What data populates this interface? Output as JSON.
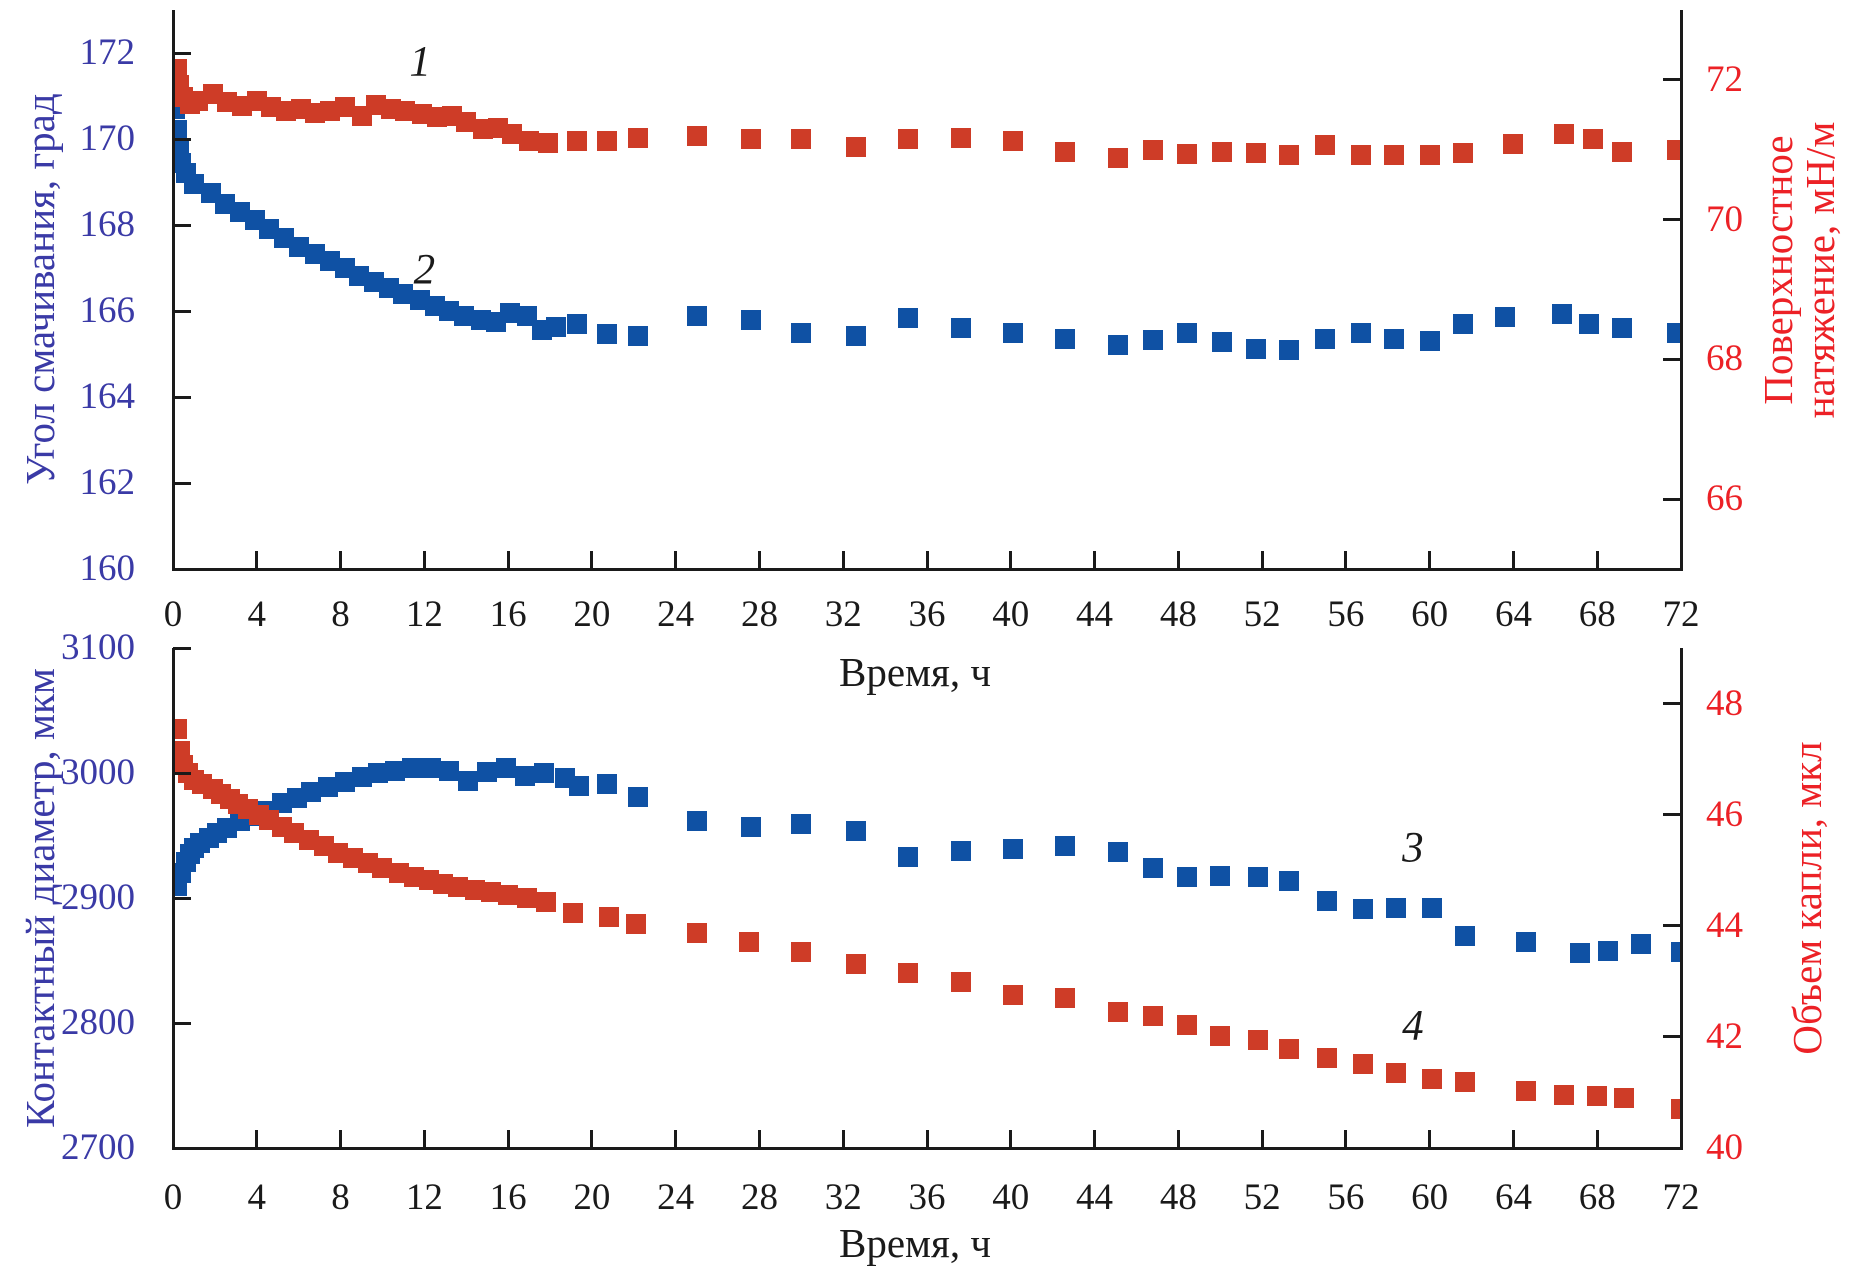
{
  "colors": {
    "marker_blue": "#0F51A4",
    "marker_red": "#CE3C27",
    "axis_line": "#1A1A1A",
    "left_axis_text": "#3A3AA6",
    "right_axis_text": "#EC2126",
    "x_axis_text": "#1A1A1A"
  },
  "chart_data": [
    {
      "type": "scatter",
      "marker": "square",
      "grid": false,
      "legend": "none",
      "x": {
        "label": "Время, ч",
        "range": [
          0,
          72
        ],
        "ticks": [
          0,
          4,
          8,
          12,
          16,
          20,
          24,
          28,
          32,
          36,
          40,
          44,
          48,
          52,
          56,
          60,
          64,
          68,
          72
        ]
      },
      "y_left": {
        "label": "Угол смачивания, град",
        "range": [
          160,
          173
        ],
        "ticks": [
          160,
          162,
          164,
          166,
          168,
          170,
          172
        ],
        "color": "#3A3AA6"
      },
      "y_right": {
        "label_lines": [
          "Поверхностное",
          "натяжение, мН/м"
        ],
        "range": [
          65,
          73
        ],
        "ticks": [
          66,
          68,
          70,
          72
        ],
        "color": "#EC2126"
      },
      "series": [
        {
          "name": "1",
          "axis": "right",
          "color": "#CE3C27",
          "z": 2,
          "label": {
            "text": "1",
            "x": 11.8,
            "y": 72.25
          },
          "points": [
            [
              0.2,
              72.15
            ],
            [
              0.3,
              71.92
            ],
            [
              0.5,
              71.76
            ],
            [
              0.8,
              71.65
            ],
            [
              1.2,
              71.7
            ],
            [
              1.9,
              71.8
            ],
            [
              2.6,
              71.68
            ],
            [
              3.3,
              71.63
            ],
            [
              4.0,
              71.7
            ],
            [
              4.7,
              71.61
            ],
            [
              5.4,
              71.56
            ],
            [
              6.1,
              71.58
            ],
            [
              6.8,
              71.53
            ],
            [
              7.5,
              71.56
            ],
            [
              8.2,
              71.61
            ],
            [
              9.0,
              71.49
            ],
            [
              9.7,
              71.64
            ],
            [
              10.4,
              71.58
            ],
            [
              11.1,
              71.55
            ],
            [
              11.9,
              71.51
            ],
            [
              12.6,
              71.47
            ],
            [
              13.3,
              71.49
            ],
            [
              14.0,
              71.39
            ],
            [
              14.8,
              71.29
            ],
            [
              15.5,
              71.31
            ],
            [
              16.2,
              71.23
            ],
            [
              17.0,
              71.13
            ],
            [
              17.9,
              71.1
            ],
            [
              19.3,
              71.12
            ],
            [
              20.7,
              71.12
            ],
            [
              22.2,
              71.17
            ],
            [
              25.0,
              71.2
            ],
            [
              27.6,
              71.15
            ],
            [
              30.0,
              71.15
            ],
            [
              32.6,
              71.04
            ],
            [
              35.1,
              71.15
            ],
            [
              37.6,
              71.17
            ],
            [
              40.1,
              71.12
            ],
            [
              42.6,
              70.97
            ],
            [
              45.1,
              70.88
            ],
            [
              46.8,
              71.0
            ],
            [
              48.4,
              70.94
            ],
            [
              50.1,
              70.97
            ],
            [
              51.7,
              70.95
            ],
            [
              53.3,
              70.92
            ],
            [
              55.0,
              71.07
            ],
            [
              56.7,
              70.92
            ],
            [
              58.3,
              70.93
            ],
            [
              60.0,
              70.93
            ],
            [
              61.6,
              70.95
            ],
            [
              64.0,
              71.08
            ],
            [
              66.4,
              71.22
            ],
            [
              67.8,
              71.15
            ],
            [
              69.2,
              70.97
            ],
            [
              71.8,
              71.0
            ]
          ]
        },
        {
          "name": "2",
          "axis": "left",
          "color": "#0F51A4",
          "z": 1,
          "label": {
            "text": "2",
            "x": 12.0,
            "y": 166.95
          },
          "points": [
            [
              0.1,
              170.7
            ],
            [
              0.2,
              170.2
            ],
            [
              0.3,
              169.75
            ],
            [
              0.4,
              169.45
            ],
            [
              0.6,
              169.2
            ],
            [
              1.0,
              168.95
            ],
            [
              1.8,
              168.74
            ],
            [
              2.5,
              168.5
            ],
            [
              3.2,
              168.3
            ],
            [
              3.9,
              168.12
            ],
            [
              4.6,
              167.9
            ],
            [
              5.3,
              167.7
            ],
            [
              6.0,
              167.5
            ],
            [
              6.8,
              167.32
            ],
            [
              7.5,
              167.16
            ],
            [
              8.2,
              167.0
            ],
            [
              8.9,
              166.82
            ],
            [
              9.6,
              166.68
            ],
            [
              10.3,
              166.53
            ],
            [
              11.0,
              166.4
            ],
            [
              11.8,
              166.26
            ],
            [
              12.5,
              166.12
            ],
            [
              13.2,
              166.01
            ],
            [
              13.9,
              165.89
            ],
            [
              14.7,
              165.8
            ],
            [
              15.4,
              165.74
            ],
            [
              16.1,
              165.95
            ],
            [
              16.9,
              165.88
            ],
            [
              17.6,
              165.56
            ],
            [
              18.3,
              165.62
            ],
            [
              19.3,
              165.7
            ],
            [
              20.7,
              165.46
            ],
            [
              22.2,
              165.42
            ],
            [
              25.0,
              165.88
            ],
            [
              27.6,
              165.8
            ],
            [
              30.0,
              165.48
            ],
            [
              32.6,
              165.42
            ],
            [
              35.1,
              165.84
            ],
            [
              37.6,
              165.6
            ],
            [
              40.1,
              165.5
            ],
            [
              42.6,
              165.36
            ],
            [
              45.1,
              165.2
            ],
            [
              46.8,
              165.32
            ],
            [
              48.4,
              165.5
            ],
            [
              50.1,
              165.28
            ],
            [
              51.7,
              165.12
            ],
            [
              53.3,
              165.1
            ],
            [
              55.0,
              165.36
            ],
            [
              56.7,
              165.5
            ],
            [
              58.3,
              165.36
            ],
            [
              60.0,
              165.3
            ],
            [
              61.6,
              165.7
            ],
            [
              63.6,
              165.86
            ],
            [
              66.3,
              165.93
            ],
            [
              67.6,
              165.7
            ],
            [
              69.2,
              165.6
            ],
            [
              71.8,
              165.5
            ]
          ]
        }
      ]
    },
    {
      "type": "scatter",
      "marker": "square",
      "grid": false,
      "legend": "none",
      "x": {
        "label": "Время, ч",
        "range": [
          0,
          72
        ],
        "ticks": [
          0,
          4,
          8,
          12,
          16,
          20,
          24,
          28,
          32,
          36,
          40,
          44,
          48,
          52,
          56,
          60,
          64,
          68,
          72
        ]
      },
      "y_left": {
        "label": "Контактный диаметр, мкм",
        "range": [
          2700,
          3100
        ],
        "ticks": [
          2700,
          2800,
          2900,
          3000,
          3100
        ],
        "color": "#3A3AA6"
      },
      "y_right": {
        "label_lines": [
          "Объем капли, мкл"
        ],
        "range": [
          40,
          49
        ],
        "ticks": [
          40,
          42,
          44,
          46,
          48
        ],
        "color": "#EC2126"
      },
      "series": [
        {
          "name": "3",
          "axis": "left",
          "color": "#0F51A4",
          "z": 1,
          "label": {
            "text": "3",
            "x": 59.2,
            "y": 2940
          },
          "points": [
            [
              0.2,
              2910
            ],
            [
              0.4,
              2920
            ],
            [
              0.6,
              2929
            ],
            [
              0.8,
              2935
            ],
            [
              1.0,
              2940
            ],
            [
              1.3,
              2944
            ],
            [
              1.7,
              2948
            ],
            [
              2.1,
              2952
            ],
            [
              2.6,
              2956
            ],
            [
              3.2,
              2962
            ],
            [
              3.8,
              2966
            ],
            [
              4.5,
              2970
            ],
            [
              5.2,
              2976
            ],
            [
              5.9,
              2980
            ],
            [
              6.6,
              2985
            ],
            [
              7.4,
              2989
            ],
            [
              8.2,
              2993
            ],
            [
              9.0,
              2997
            ],
            [
              9.8,
              3000
            ],
            [
              10.6,
              3002
            ],
            [
              11.4,
              3004
            ],
            [
              12.3,
              3004
            ],
            [
              13.2,
              3002
            ],
            [
              14.1,
              2994
            ],
            [
              15.0,
              3001
            ],
            [
              15.9,
              3004
            ],
            [
              16.8,
              2998
            ],
            [
              17.7,
              3000
            ],
            [
              18.7,
              2996
            ],
            [
              19.4,
              2990
            ],
            [
              20.7,
              2991
            ],
            [
              22.2,
              2981
            ],
            [
              25.0,
              2962
            ],
            [
              27.6,
              2957
            ],
            [
              30.0,
              2959
            ],
            [
              32.6,
              2954
            ],
            [
              35.1,
              2933
            ],
            [
              37.6,
              2938
            ],
            [
              40.1,
              2939
            ],
            [
              42.6,
              2942
            ],
            [
              45.1,
              2937
            ],
            [
              46.8,
              2924
            ],
            [
              48.4,
              2917
            ],
            [
              50.0,
              2918
            ],
            [
              51.8,
              2917
            ],
            [
              53.3,
              2914
            ],
            [
              55.1,
              2898
            ],
            [
              56.8,
              2891
            ],
            [
              58.4,
              2892
            ],
            [
              60.1,
              2892
            ],
            [
              61.7,
              2870
            ],
            [
              64.6,
              2865
            ],
            [
              67.2,
              2856
            ],
            [
              68.5,
              2858
            ],
            [
              70.1,
              2863
            ],
            [
              72.0,
              2857
            ]
          ]
        },
        {
          "name": "4",
          "axis": "right",
          "color": "#CE3C27",
          "z": 2,
          "label": {
            "text": "4",
            "x": 59.2,
            "y": 42.2
          },
          "points": [
            [
              0.2,
              47.55
            ],
            [
              0.35,
              47.15
            ],
            [
              0.5,
              46.9
            ],
            [
              0.7,
              46.75
            ],
            [
              1.0,
              46.62
            ],
            [
              1.4,
              46.55
            ],
            [
              1.9,
              46.46
            ],
            [
              2.3,
              46.37
            ],
            [
              2.7,
              46.28
            ],
            [
              3.1,
              46.19
            ],
            [
              3.6,
              46.1
            ],
            [
              4.1,
              46.0
            ],
            [
              4.6,
              45.91
            ],
            [
              5.2,
              45.78
            ],
            [
              5.8,
              45.67
            ],
            [
              6.5,
              45.55
            ],
            [
              7.2,
              45.43
            ],
            [
              7.9,
              45.31
            ],
            [
              8.6,
              45.22
            ],
            [
              9.3,
              45.13
            ],
            [
              10.0,
              45.04
            ],
            [
              10.8,
              44.95
            ],
            [
              11.5,
              44.88
            ],
            [
              12.2,
              44.82
            ],
            [
              12.9,
              44.76
            ],
            [
              13.6,
              44.69
            ],
            [
              14.4,
              44.64
            ],
            [
              15.2,
              44.6
            ],
            [
              16.0,
              44.55
            ],
            [
              16.9,
              44.5
            ],
            [
              17.8,
              44.43
            ],
            [
              19.1,
              44.23
            ],
            [
              20.8,
              44.16
            ],
            [
              22.1,
              44.03
            ],
            [
              25.0,
              43.87
            ],
            [
              27.5,
              43.71
            ],
            [
              30.0,
              43.52
            ],
            [
              32.6,
              43.32
            ],
            [
              35.1,
              43.15
            ],
            [
              37.6,
              42.99
            ],
            [
              40.1,
              42.76
            ],
            [
              42.6,
              42.7
            ],
            [
              45.1,
              42.44
            ],
            [
              46.8,
              42.37
            ],
            [
              48.4,
              42.21
            ],
            [
              50.0,
              42.01
            ],
            [
              51.8,
              41.95
            ],
            [
              53.3,
              41.79
            ],
            [
              55.1,
              41.62
            ],
            [
              56.8,
              41.52
            ],
            [
              58.4,
              41.35
            ],
            [
              60.1,
              41.25
            ],
            [
              61.7,
              41.18
            ],
            [
              64.6,
              41.02
            ],
            [
              66.4,
              40.95
            ],
            [
              68.0,
              40.93
            ],
            [
              69.3,
              40.9
            ],
            [
              72.0,
              40.7
            ]
          ]
        }
      ]
    }
  ]
}
